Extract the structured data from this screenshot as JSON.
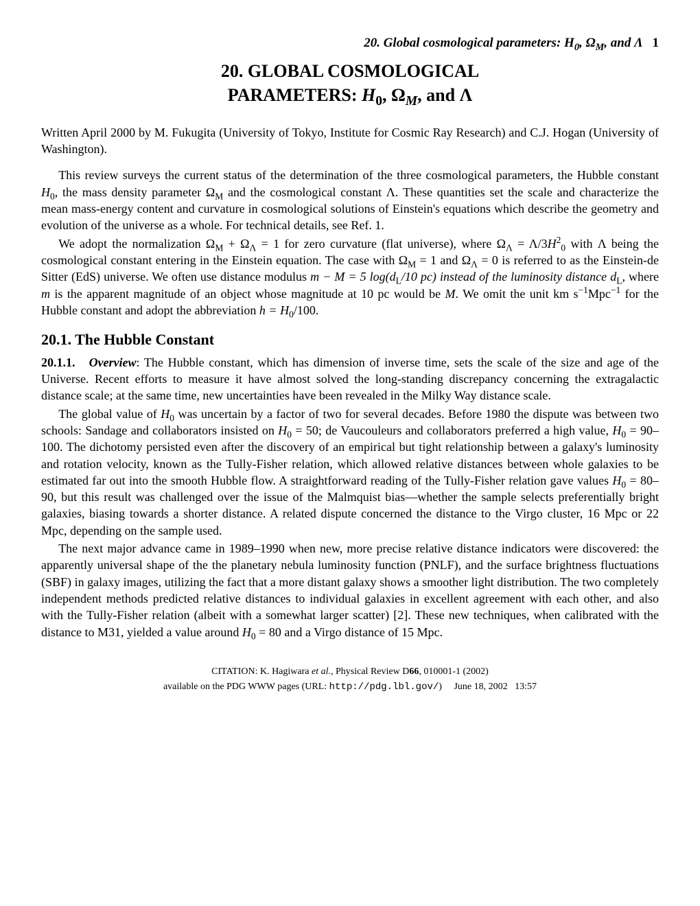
{
  "running_header": {
    "text": "20. Global cosmological parameters: H",
    "sub0": "0",
    "omega": ", Ω",
    "subM": "M",
    "tail": ", and Λ",
    "page": "1"
  },
  "title": {
    "line1": "20. GLOBAL COSMOLOGICAL",
    "line2a": "PARAMETERS: ",
    "h0": "H",
    "h0sub": "0",
    "omega": ", Ω",
    "omegasub": "M",
    "tail": ", and Λ"
  },
  "authors": "Written April 2000 by M. Fukugita (University of Tokyo, Institute for Cosmic Ray Research) and C.J. Hogan (University of Washington).",
  "para1": {
    "a": "This review surveys the current status of the determination of the three cosmological parameters, the Hubble constant ",
    "h0": "H",
    "h0s": "0",
    "b": ", the mass density parameter Ω",
    "ms": "M",
    "c": " and the cosmological constant Λ. These quantities set the scale and characterize the mean mass-energy content and curvature in cosmological solutions of Einstein's equations which describe the geometry and evolution of the universe as a whole. For technical details, see Ref. 1."
  },
  "para2": {
    "a": "We adopt the normalization Ω",
    "ms": "M",
    "b": " + Ω",
    "ls": "Λ",
    "c": " = 1 for zero curvature (flat universe), where Ω",
    "ls2": "Λ",
    "d": " = Λ/3",
    "h": "H",
    "hsup": "2",
    "hsub": "0",
    "e": " with Λ being the cosmological constant entering in the Einstein equation. The case with Ω",
    "ms2": "M",
    "f": " = 1 and Ω",
    "ls3": "Λ",
    "g": " = 0 is referred to as the Einstein-de Sitter (EdS) universe. We often use distance modulus ",
    "mm": "m − M = 5 log(d",
    "dlsub": "L",
    "h2": "/10 pc) instead of the luminosity distance ",
    "dl": "d",
    "dlsub2": "L",
    "i": ", where ",
    "m": "m",
    "j": " is the apparent magnitude of an object whose magnitude at 10 pc would be ",
    "M": "M",
    "k": ". We omit the unit km s",
    "sup1": "−1",
    "mpc": "Mpc",
    "sup2": "−1",
    "l": " for the Hubble constant and adopt the abbreviation ",
    "hh": "h = H",
    "hhsub": "0",
    "tail": "/100."
  },
  "sec20_1": "20.1.   The Hubble Constant",
  "sub20_1_1": {
    "label": "20.1.1.",
    "title": "Overview",
    "colon": ": ",
    "body": "The Hubble constant, which has dimension of inverse time, sets the scale of the size and age of the Universe. Recent efforts to measure it have almost solved the long-standing discrepancy concerning the extragalactic distance scale; at the same time, new uncertainties have been revealed in the Milky Way distance scale."
  },
  "para3": {
    "a": "The global value of ",
    "h": "H",
    "hs": "0",
    "b": " was uncertain by a factor of two for several decades. Before 1980 the dispute was between two schools: Sandage and collaborators insisted on ",
    "h2": "H",
    "hs2": "0",
    "c": " = 50; de Vaucouleurs and collaborators preferred a high value, ",
    "h3": "H",
    "hs3": "0",
    "d": " = 90–100. The dichotomy persisted even after the discovery of an empirical but tight relationship between a galaxy's luminosity and rotation velocity, known as the Tully-Fisher relation, which allowed relative distances between whole galaxies to be estimated far out into the smooth Hubble flow. A straightforward reading of the Tully-Fisher relation gave values ",
    "h4": "H",
    "hs4": "0",
    "e": " = 80–90, but this result was challenged over the issue of the Malmquist bias—whether the sample selects preferentially bright galaxies, biasing towards a shorter distance. A related dispute concerned the distance to the Virgo cluster, 16 Mpc or 22 Mpc, depending on the sample used."
  },
  "para4": {
    "a": "The next major advance came in 1989–1990 when new, more precise relative distance indicators were discovered: the apparently universal shape of the the planetary nebula luminosity function (PNLF), and the surface brightness fluctuations (SBF) in galaxy images, utilizing the fact that a more distant galaxy shows a smoother light distribution. The two completely independent methods predicted relative distances to individual galaxies in excellent agreement with each other, and also with the Tully-Fisher relation (albeit with a somewhat larger scatter) [2]. These new techniques, when calibrated with the distance to M31, yielded a value around ",
    "h": "H",
    "hs": "0",
    "b": " = 80 and a Virgo distance of 15 Mpc."
  },
  "footer": {
    "citation_a": "CITATION: K. Hagiwara ",
    "etal": "et al.",
    "citation_b": ", Physical Review D",
    "vol": "66",
    "citation_c": ", 010001-1 (2002)",
    "avail_a": "available on the PDG WWW pages (URL: ",
    "url": "http://pdg.lbl.gov/",
    "avail_b": ")",
    "date": "June 18, 2002",
    "time": "13:57"
  }
}
